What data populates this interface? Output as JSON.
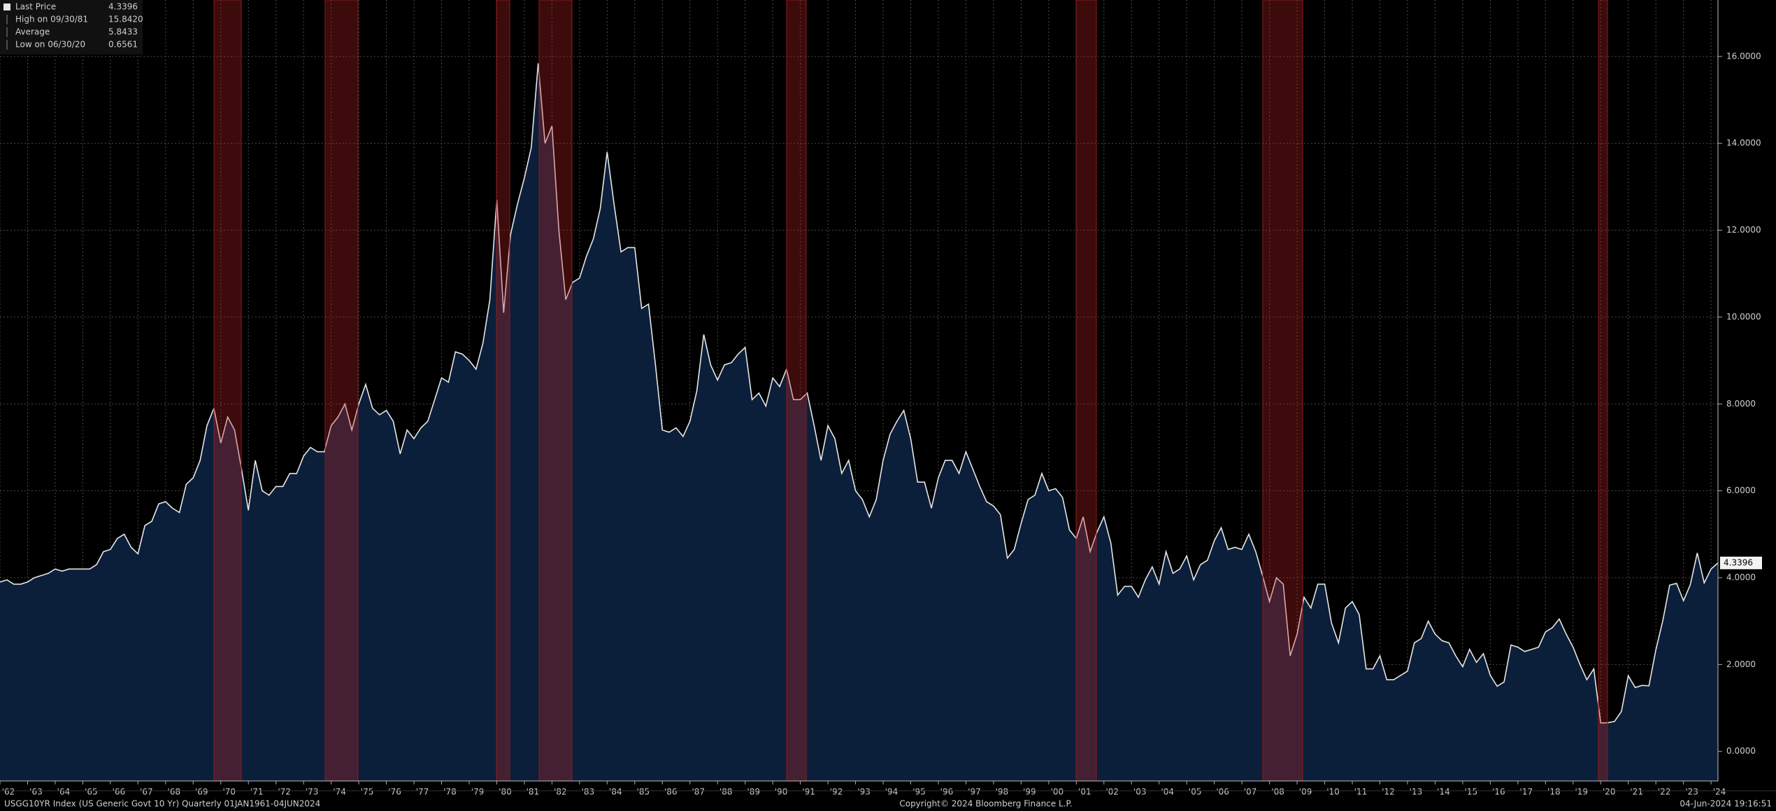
{
  "chart_data": {
    "type": "area",
    "stats": [
      {
        "name": "Last Price",
        "value": 4.3396
      },
      {
        "name": "High on 09/30/81",
        "value": 15.842,
        "label": "15.8420"
      },
      {
        "name": "Average",
        "value": 5.8433
      },
      {
        "name": "Low on 06/30/20",
        "value": 0.6561
      }
    ],
    "footer_left": "USGG10YR Index (US Generic Govt 10 Yr)  Quarterly 01JAN1961-04JUN2024",
    "footer_center": "Copyright© 2024 Bloomberg Finance L.P.",
    "footer_right": "04-Jun-2024 19:16:51",
    "categories": [
      "'62",
      null,
      null,
      null,
      "'63",
      null,
      null,
      null,
      "'64",
      null,
      null,
      null,
      "'65",
      null,
      null,
      null,
      "'66",
      null,
      null,
      null,
      "'67",
      null,
      null,
      null,
      "'68",
      null,
      null,
      null,
      "'69",
      null,
      null,
      null,
      "'70",
      null,
      null,
      null,
      "'71",
      null,
      null,
      null,
      "'72",
      null,
      null,
      null,
      "'73",
      null,
      null,
      null,
      "'74",
      null,
      null,
      null,
      "'75",
      null,
      null,
      null,
      "'76",
      null,
      null,
      null,
      "'77",
      null,
      null,
      null,
      "'78",
      null,
      null,
      null,
      "'79",
      null,
      null,
      null,
      "'80",
      null,
      null,
      null,
      "'81",
      null,
      null,
      null,
      "'82",
      null,
      null,
      null,
      "'83",
      null,
      null,
      null,
      "'84",
      null,
      null,
      null,
      "'85",
      null,
      null,
      null,
      "'86",
      null,
      null,
      null,
      "'87",
      null,
      null,
      null,
      "'88",
      null,
      null,
      null,
      "'89",
      null,
      null,
      null,
      "'90",
      null,
      null,
      null,
      "'91",
      null,
      null,
      null,
      "'92",
      null,
      null,
      null,
      "'93",
      null,
      null,
      null,
      "'94",
      null,
      null,
      null,
      "'95",
      null,
      null,
      null,
      "'96",
      null,
      null,
      null,
      "'97",
      null,
      null,
      null,
      "'98",
      null,
      null,
      null,
      "'99",
      null,
      null,
      null,
      "'00",
      null,
      null,
      null,
      "'01",
      null,
      null,
      null,
      "'02",
      null,
      null,
      null,
      "'03",
      null,
      null,
      null,
      "'04",
      null,
      null,
      null,
      "'05",
      null,
      null,
      null,
      "'06",
      null,
      null,
      null,
      "'07",
      null,
      null,
      null,
      "'08",
      null,
      null,
      null,
      "'09",
      null,
      null,
      null,
      "'10",
      null,
      null,
      null,
      "'11",
      null,
      null,
      null,
      "'12",
      null,
      null,
      null,
      "'13",
      null,
      null,
      null,
      "'14",
      null,
      null,
      null,
      "'15",
      null,
      null,
      null,
      "'16",
      null,
      null,
      null,
      "'17",
      null,
      null,
      null,
      "'18",
      null,
      null,
      null,
      "'19",
      null,
      null,
      null,
      "'20",
      null,
      null,
      null,
      "'21",
      null,
      null,
      null,
      "'22",
      null,
      null,
      null,
      "'23",
      null,
      null,
      null,
      "'24",
      null
    ],
    "series": [
      {
        "name": "Last Price",
        "color": "#e6e6e6",
        "fill": "#0b1f3a",
        "values": [
          3.9,
          3.95,
          3.85,
          3.85,
          3.9,
          4.0,
          4.05,
          4.1,
          4.2,
          4.15,
          4.2,
          4.2,
          4.2,
          4.2,
          4.3,
          4.6,
          4.65,
          4.9,
          5.0,
          4.7,
          4.55,
          5.2,
          5.3,
          5.7,
          5.75,
          5.6,
          5.5,
          6.15,
          6.3,
          6.7,
          7.5,
          7.9,
          7.1,
          7.7,
          7.4,
          6.5,
          5.55,
          6.7,
          6.0,
          5.9,
          6.1,
          6.1,
          6.4,
          6.4,
          6.8,
          7.0,
          6.9,
          6.9,
          7.5,
          7.7,
          8.0,
          7.4,
          8.0,
          8.45,
          7.9,
          7.75,
          7.85,
          7.6,
          6.85,
          7.4,
          7.2,
          7.45,
          7.6,
          8.1,
          8.6,
          8.5,
          9.2,
          9.15,
          9.0,
          8.8,
          9.4,
          10.4,
          12.7,
          10.1,
          11.9,
          12.6,
          13.2,
          13.9,
          15.842,
          14.0,
          14.4,
          12.0,
          10.4,
          10.8,
          10.9,
          11.4,
          11.8,
          12.5,
          13.8,
          12.6,
          11.5,
          11.6,
          11.6,
          10.2,
          10.3,
          8.9,
          7.4,
          7.35,
          7.45,
          7.25,
          7.6,
          8.3,
          9.6,
          8.9,
          8.55,
          8.9,
          8.95,
          9.15,
          9.3,
          8.1,
          8.25,
          7.95,
          8.6,
          8.4,
          8.8,
          8.1,
          8.1,
          8.25,
          7.5,
          6.7,
          7.5,
          7.2,
          6.4,
          6.7,
          6.0,
          5.8,
          5.4,
          5.8,
          6.7,
          7.3,
          7.6,
          7.85,
          7.2,
          6.2,
          6.2,
          5.6,
          6.3,
          6.7,
          6.7,
          6.4,
          6.9,
          6.5,
          6.1,
          5.75,
          5.65,
          5.45,
          4.45,
          4.65,
          5.25,
          5.8,
          5.9,
          6.4,
          6.0,
          6.05,
          5.85,
          5.1,
          4.9,
          5.4,
          4.6,
          5.05,
          5.4,
          4.8,
          3.6,
          3.8,
          3.8,
          3.55,
          3.95,
          4.25,
          3.85,
          4.6,
          4.1,
          4.2,
          4.5,
          3.95,
          4.3,
          4.4,
          4.85,
          5.15,
          4.65,
          4.7,
          4.65,
          5.0,
          4.6,
          4.05,
          3.45,
          4.0,
          3.85,
          2.2,
          2.7,
          3.55,
          3.3,
          3.85,
          3.85,
          2.95,
          2.5,
          3.3,
          3.45,
          3.15,
          1.9,
          1.9,
          2.2,
          1.65,
          1.65,
          1.75,
          1.85,
          2.5,
          2.6,
          3.0,
          2.7,
          2.55,
          2.5,
          2.2,
          1.95,
          2.35,
          2.05,
          2.25,
          1.75,
          1.5,
          1.6,
          2.45,
          2.4,
          2.3,
          2.35,
          2.4,
          2.75,
          2.85,
          3.05,
          2.7,
          2.4,
          2.0,
          1.65,
          1.9,
          0.6561,
          0.66,
          0.69,
          0.92,
          1.74,
          1.47,
          1.52,
          1.51,
          2.34,
          3.01,
          3.83,
          3.87,
          3.47,
          3.84,
          4.57,
          3.88,
          4.2,
          4.3396
        ]
      }
    ],
    "ylim": [
      -0.68,
      17.3
    ],
    "yticks": [
      {
        "value": 0,
        "label": "0.0000"
      },
      {
        "value": 2,
        "label": "2.0000"
      },
      {
        "value": 4,
        "label": "4.0000"
      },
      {
        "value": 6,
        "label": "6.0000"
      },
      {
        "value": 8,
        "label": "8.0000"
      },
      {
        "value": 10,
        "label": "10.0000"
      },
      {
        "value": 12,
        "label": "12.0000"
      },
      {
        "value": 14,
        "label": "14.0000"
      },
      {
        "value": 16,
        "label": "16.0000"
      }
    ],
    "grid": true
  }
}
